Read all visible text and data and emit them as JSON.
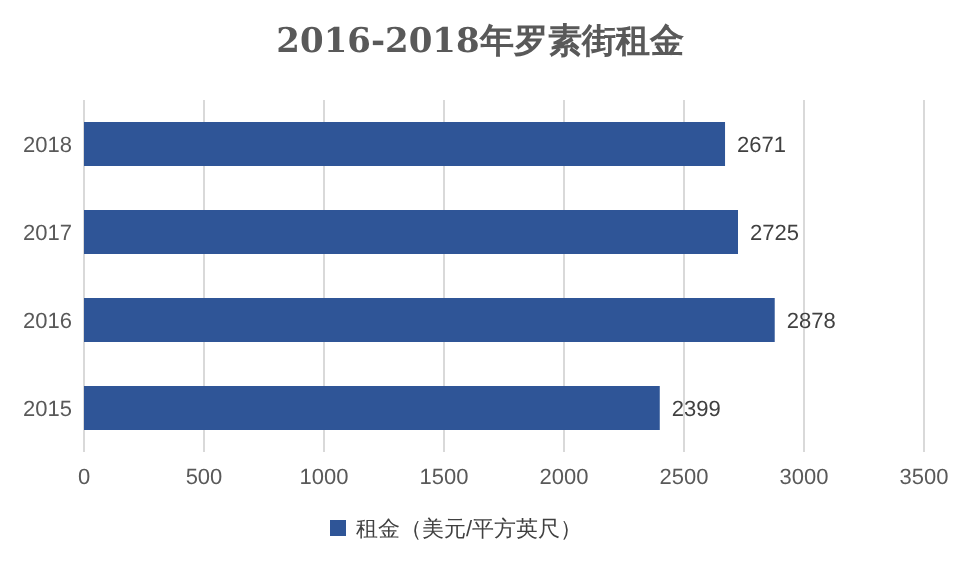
{
  "chart_data": {
    "type": "bar",
    "orientation": "horizontal",
    "title": "2016-2018年罗素街租金",
    "categories": [
      "2018",
      "2017",
      "2016",
      "2015"
    ],
    "series": [
      {
        "name": "租金（美元/平方英尺）",
        "color": "#2f5597",
        "values": [
          2671,
          2725,
          2878,
          2399
        ]
      }
    ],
    "xlim": [
      0,
      3500
    ],
    "xticks": [
      0,
      500,
      1000,
      1500,
      2000,
      2500,
      3000,
      3500
    ],
    "grid": "x",
    "legend": "bottom",
    "data_labels": true
  }
}
